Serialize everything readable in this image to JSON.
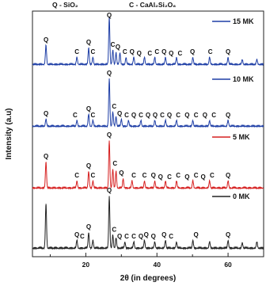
{
  "chart_data": {
    "type": "line",
    "xlabel": "2θ (in degrees)",
    "ylabel": "Intensity (a.u)",
    "xlim": [
      5,
      70
    ],
    "xticks": [
      20,
      40,
      60
    ],
    "yticks_shown": false,
    "phase_labels": [
      "Q - SiO₂",
      "C - CaAl₂Si₂O₈"
    ],
    "stacked": true,
    "legend_placement": "right of each trace",
    "series": [
      {
        "name": "15 MK",
        "color": "#1f3fa6",
        "peaks": [
          [
            8.8,
            0.4
          ],
          [
            17.5,
            0.15
          ],
          [
            20.8,
            0.35
          ],
          [
            22.0,
            0.15
          ],
          [
            26.6,
            1.0
          ],
          [
            27.6,
            0.3
          ],
          [
            28.5,
            0.25
          ],
          [
            29.6,
            0.25
          ],
          [
            31.3,
            0.15
          ],
          [
            33.5,
            0.15
          ],
          [
            36.5,
            0.15
          ],
          [
            39.4,
            0.15
          ],
          [
            42.4,
            0.15
          ],
          [
            45.5,
            0.15
          ],
          [
            50.1,
            0.15
          ],
          [
            54.8,
            0.15
          ],
          [
            60.0,
            0.15
          ],
          [
            64.0,
            0.1
          ],
          [
            68.1,
            0.1
          ]
        ],
        "annotations": [
          {
            "label": "Q",
            "x": 8.8
          },
          {
            "label": "C",
            "x": 17.5
          },
          {
            "label": "Q",
            "x": 20.8
          },
          {
            "label": "C",
            "x": 22.0
          },
          {
            "label": "Q",
            "x": 26.6
          },
          {
            "label": "C",
            "x": 27.6
          },
          {
            "label": "Q",
            "x": 29.0
          },
          {
            "label": "C",
            "x": 31.0
          },
          {
            "label": "Q",
            "x": 33.0
          },
          {
            "label": "Q",
            "x": 35.0
          },
          {
            "label": "C",
            "x": 38.0
          },
          {
            "label": "C",
            "x": 40.0
          },
          {
            "label": "Q",
            "x": 42.0
          },
          {
            "label": "Q",
            "x": 44.0
          },
          {
            "label": "C",
            "x": 46.5
          },
          {
            "label": "Q",
            "x": 50.0
          },
          {
            "label": "C",
            "x": 55.0
          },
          {
            "label": "Q",
            "x": 60.0
          }
        ]
      },
      {
        "name": "10 MK",
        "color": "#1f3fa6",
        "peaks": [
          [
            8.8,
            0.15
          ],
          [
            17.5,
            0.12
          ],
          [
            20.8,
            0.25
          ],
          [
            22.0,
            0.12
          ],
          [
            26.6,
            1.0
          ],
          [
            27.6,
            0.3
          ],
          [
            28.5,
            0.2
          ],
          [
            30.0,
            0.15
          ],
          [
            32.0,
            0.12
          ],
          [
            35.5,
            0.12
          ],
          [
            39.4,
            0.12
          ],
          [
            42.4,
            0.12
          ],
          [
            45.5,
            0.12
          ],
          [
            50.1,
            0.12
          ],
          [
            54.8,
            0.12
          ],
          [
            60.0,
            0.12
          ]
        ],
        "annotations": [
          {
            "label": "Q",
            "x": 8.8
          },
          {
            "label": "C",
            "x": 17.0
          },
          {
            "label": "Q",
            "x": 20.8
          },
          {
            "label": "C",
            "x": 22.0
          },
          {
            "label": "Q",
            "x": 26.6
          },
          {
            "label": "C",
            "x": 28.0
          },
          {
            "label": "Q",
            "x": 29.5
          },
          {
            "label": "C",
            "x": 31.5
          },
          {
            "label": "Q",
            "x": 33.5
          },
          {
            "label": "C",
            "x": 35.5
          },
          {
            "label": "Q",
            "x": 37.5
          },
          {
            "label": "Q",
            "x": 39.5
          },
          {
            "label": "C",
            "x": 41.5
          },
          {
            "label": "Q",
            "x": 43.5
          },
          {
            "label": "C",
            "x": 46.0
          },
          {
            "label": "Q",
            "x": 48.5
          },
          {
            "label": "C",
            "x": 51.0
          },
          {
            "label": "Q",
            "x": 53.5
          },
          {
            "label": "C",
            "x": 56.0
          },
          {
            "label": "Q",
            "x": 60.0
          }
        ]
      },
      {
        "name": "5 MK",
        "color": "#d62020",
        "peaks": [
          [
            8.8,
            0.55
          ],
          [
            17.5,
            0.15
          ],
          [
            20.8,
            0.35
          ],
          [
            22.0,
            0.15
          ],
          [
            26.6,
            1.0
          ],
          [
            27.6,
            0.4
          ],
          [
            28.5,
            0.35
          ],
          [
            30.5,
            0.2
          ],
          [
            33.0,
            0.15
          ],
          [
            36.5,
            0.15
          ],
          [
            39.4,
            0.15
          ],
          [
            42.4,
            0.15
          ],
          [
            45.5,
            0.15
          ],
          [
            50.1,
            0.15
          ],
          [
            54.8,
            0.15
          ],
          [
            60.0,
            0.15
          ]
        ],
        "annotations": [
          {
            "label": "Q",
            "x": 8.8
          },
          {
            "label": "C",
            "x": 17.5
          },
          {
            "label": "Q",
            "x": 20.8
          },
          {
            "label": "C",
            "x": 22.0
          },
          {
            "label": "Q",
            "x": 26.6
          },
          {
            "label": "C",
            "x": 28.2
          },
          {
            "label": "Q",
            "x": 30.0
          },
          {
            "label": "C",
            "x": 33.5
          },
          {
            "label": "C",
            "x": 36.5
          },
          {
            "label": "Q",
            "x": 39.0
          },
          {
            "label": "Q",
            "x": 41.0
          },
          {
            "label": "C",
            "x": 43.5
          },
          {
            "label": "C",
            "x": 46.0
          },
          {
            "label": "Q",
            "x": 48.5
          },
          {
            "label": "C",
            "x": 51.0
          },
          {
            "label": "Q",
            "x": 53.0
          },
          {
            "label": "C",
            "x": 55.5
          },
          {
            "label": "Q",
            "x": 60.0
          }
        ]
      },
      {
        "name": "0 MK",
        "color": "#222222",
        "peaks": [
          [
            8.8,
            0.85
          ],
          [
            17.5,
            0.15
          ],
          [
            20.8,
            0.3
          ],
          [
            22.0,
            0.15
          ],
          [
            26.6,
            1.0
          ],
          [
            27.6,
            0.25
          ],
          [
            28.5,
            0.2
          ],
          [
            31.0,
            0.12
          ],
          [
            33.5,
            0.12
          ],
          [
            36.5,
            0.15
          ],
          [
            39.4,
            0.12
          ],
          [
            42.4,
            0.15
          ],
          [
            45.5,
            0.12
          ],
          [
            50.1,
            0.15
          ],
          [
            54.8,
            0.12
          ],
          [
            60.0,
            0.15
          ],
          [
            64.0,
            0.1
          ],
          [
            68.1,
            0.12
          ]
        ],
        "annotations": [
          {
            "label": "Q",
            "x": 17.5
          },
          {
            "label": "C",
            "x": 19.0
          },
          {
            "label": "Q",
            "x": 20.8
          },
          {
            "label": "Q",
            "x": 26.6
          },
          {
            "label": "C",
            "x": 28.0
          },
          {
            "label": "Q",
            "x": 29.5
          },
          {
            "label": "C",
            "x": 31.5
          },
          {
            "label": "C",
            "x": 33.5
          },
          {
            "label": "Q",
            "x": 35.5
          },
          {
            "label": "Q",
            "x": 37.0
          },
          {
            "label": "Q",
            "x": 39.0
          },
          {
            "label": "Q",
            "x": 42.0
          },
          {
            "label": "C",
            "x": 44.0
          },
          {
            "label": "Q",
            "x": 51.0
          },
          {
            "label": "Q",
            "x": 60.0
          }
        ]
      }
    ]
  }
}
